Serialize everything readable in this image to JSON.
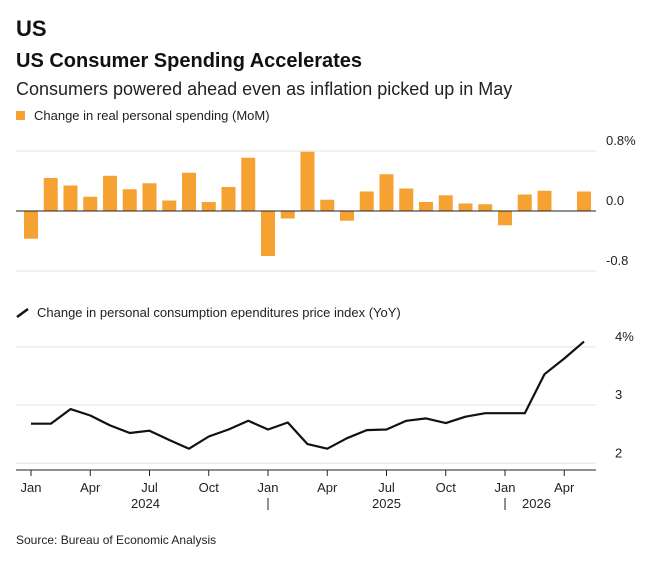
{
  "kicker": "US",
  "title": "US Consumer Spending Accelerates",
  "subtitle": "Consumers powered ahead even as inflation picked up in May",
  "source": "Source: Bureau of Economic Analysis",
  "colors": {
    "bar": "#f5a233",
    "line": "#111111",
    "grid": "#e3e3e3"
  },
  "chart_data": [
    {
      "type": "bar",
      "legend": "Change in real personal spending (MoM)",
      "y_ticks": [
        "0.8%",
        "0.0",
        "-0.8"
      ],
      "y_tick_values": [
        0.8,
        0.0,
        -0.8
      ],
      "ylim": [
        -0.8,
        0.8
      ],
      "months": [
        "2024-01",
        "2024-02",
        "2024-03",
        "2024-04",
        "2024-05",
        "2024-06",
        "2024-07",
        "2024-08",
        "2024-09",
        "2024-10",
        "2024-11",
        "2024-12",
        "2025-01",
        "2025-02",
        "2025-03",
        "2025-04",
        "2025-05",
        "2025-06",
        "2025-07",
        "2025-08",
        "2025-09",
        "2025-10",
        "2025-11",
        "2025-12",
        "2026-01",
        "2026-02",
        "2026-03",
        "2026-04",
        "2026-05"
      ],
      "values": [
        -0.37,
        0.44,
        0.34,
        0.19,
        0.47,
        0.29,
        0.37,
        0.14,
        0.51,
        0.12,
        0.32,
        0.71,
        -0.6,
        -0.1,
        0.79,
        0.15,
        -0.13,
        0.26,
        0.49,
        0.3,
        0.12,
        0.21,
        0.1,
        0.09,
        -0.19,
        0.22,
        0.27,
        null,
        0.26
      ]
    },
    {
      "type": "line",
      "legend": "Change in personal consumption ependitures price index (YoY)",
      "y_ticks": [
        "4%",
        "3",
        "2"
      ],
      "y_tick_values": [
        4,
        3,
        2
      ],
      "ylim": [
        1.85,
        4.1
      ],
      "months": [
        "2024-01",
        "2024-02",
        "2024-03",
        "2024-04",
        "2024-05",
        "2024-06",
        "2024-07",
        "2024-08",
        "2024-09",
        "2024-10",
        "2024-11",
        "2024-12",
        "2025-01",
        "2025-02",
        "2025-03",
        "2025-04",
        "2025-05",
        "2025-06",
        "2025-07",
        "2025-08",
        "2025-09",
        "2025-10",
        "2025-11",
        "2025-12",
        "2026-01",
        "2026-02",
        "2026-03",
        "2026-04",
        "2026-05"
      ],
      "values": [
        2.68,
        2.68,
        2.93,
        2.82,
        2.65,
        2.52,
        2.56,
        2.4,
        2.25,
        2.46,
        2.58,
        2.73,
        2.58,
        2.7,
        2.33,
        2.25,
        2.43,
        2.57,
        2.58,
        2.73,
        2.77,
        2.69,
        2.8,
        2.86,
        2.86,
        2.86,
        3.53,
        3.8,
        4.09
      ]
    }
  ],
  "x_axis": {
    "month_labels": [
      "Jan",
      "Apr",
      "Jul",
      "Oct",
      "Jan",
      "Apr",
      "Jul",
      "Oct",
      "Jan",
      "Apr"
    ],
    "month_label_months": [
      "2024-01",
      "2024-04",
      "2024-07",
      "2024-10",
      "2025-01",
      "2025-04",
      "2025-07",
      "2025-10",
      "2026-01",
      "2026-04"
    ],
    "years": [
      "2024",
      "2025",
      "2026"
    ]
  }
}
